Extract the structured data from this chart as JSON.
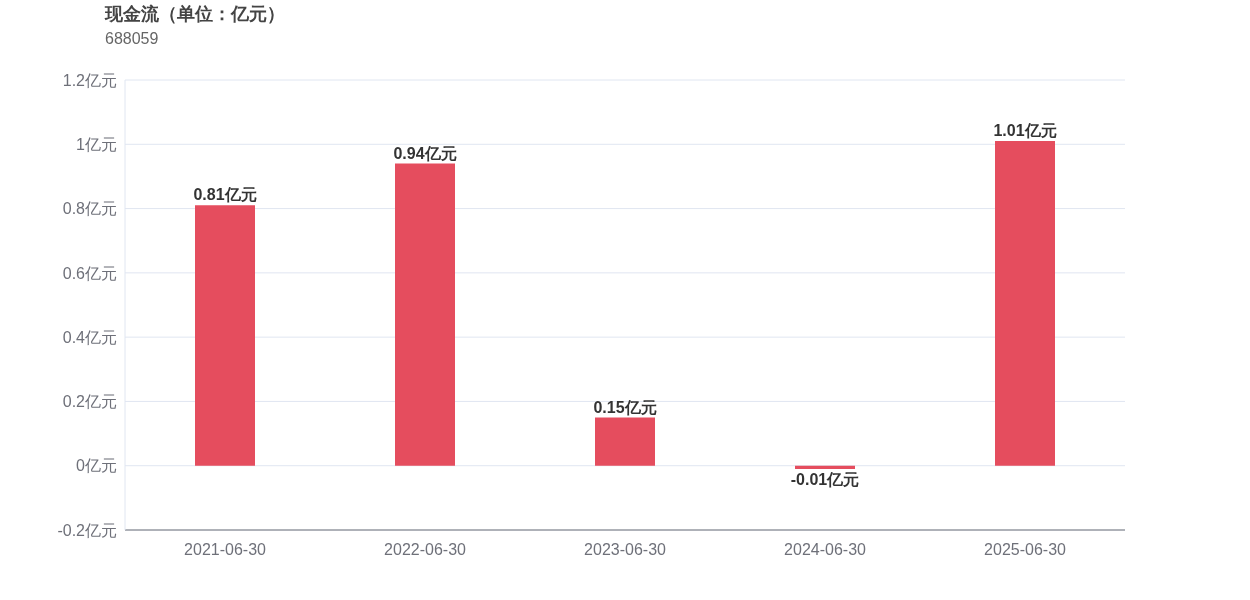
{
  "chart_data": {
    "type": "bar",
    "title": "现金流（单位：亿元）",
    "subtitle": "688059",
    "categories": [
      "2021-06-30",
      "2022-06-30",
      "2023-06-30",
      "2024-06-30",
      "2025-06-30"
    ],
    "values": [
      0.81,
      0.94,
      0.15,
      -0.01,
      1.01
    ],
    "color": "#e54d5e",
    "value_labels": [
      "0.81亿元",
      "0.94亿元",
      "0.15亿元",
      "-0.01亿元",
      "1.01亿元"
    ],
    "ylim": [
      -0.2,
      1.2
    ],
    "yticks": [
      {
        "value": -0.2,
        "label": "-0.2亿元"
      },
      {
        "value": 0,
        "label": "0亿元"
      },
      {
        "value": 0.2,
        "label": "0.2亿元"
      },
      {
        "value": 0.4,
        "label": "0.4亿元"
      },
      {
        "value": 0.6,
        "label": "0.6亿元"
      },
      {
        "value": 0.8,
        "label": "0.8亿元"
      },
      {
        "value": 1,
        "label": "1亿元"
      },
      {
        "value": 1.2,
        "label": "1.2亿元"
      }
    ],
    "grid": "y",
    "legend": false
  }
}
